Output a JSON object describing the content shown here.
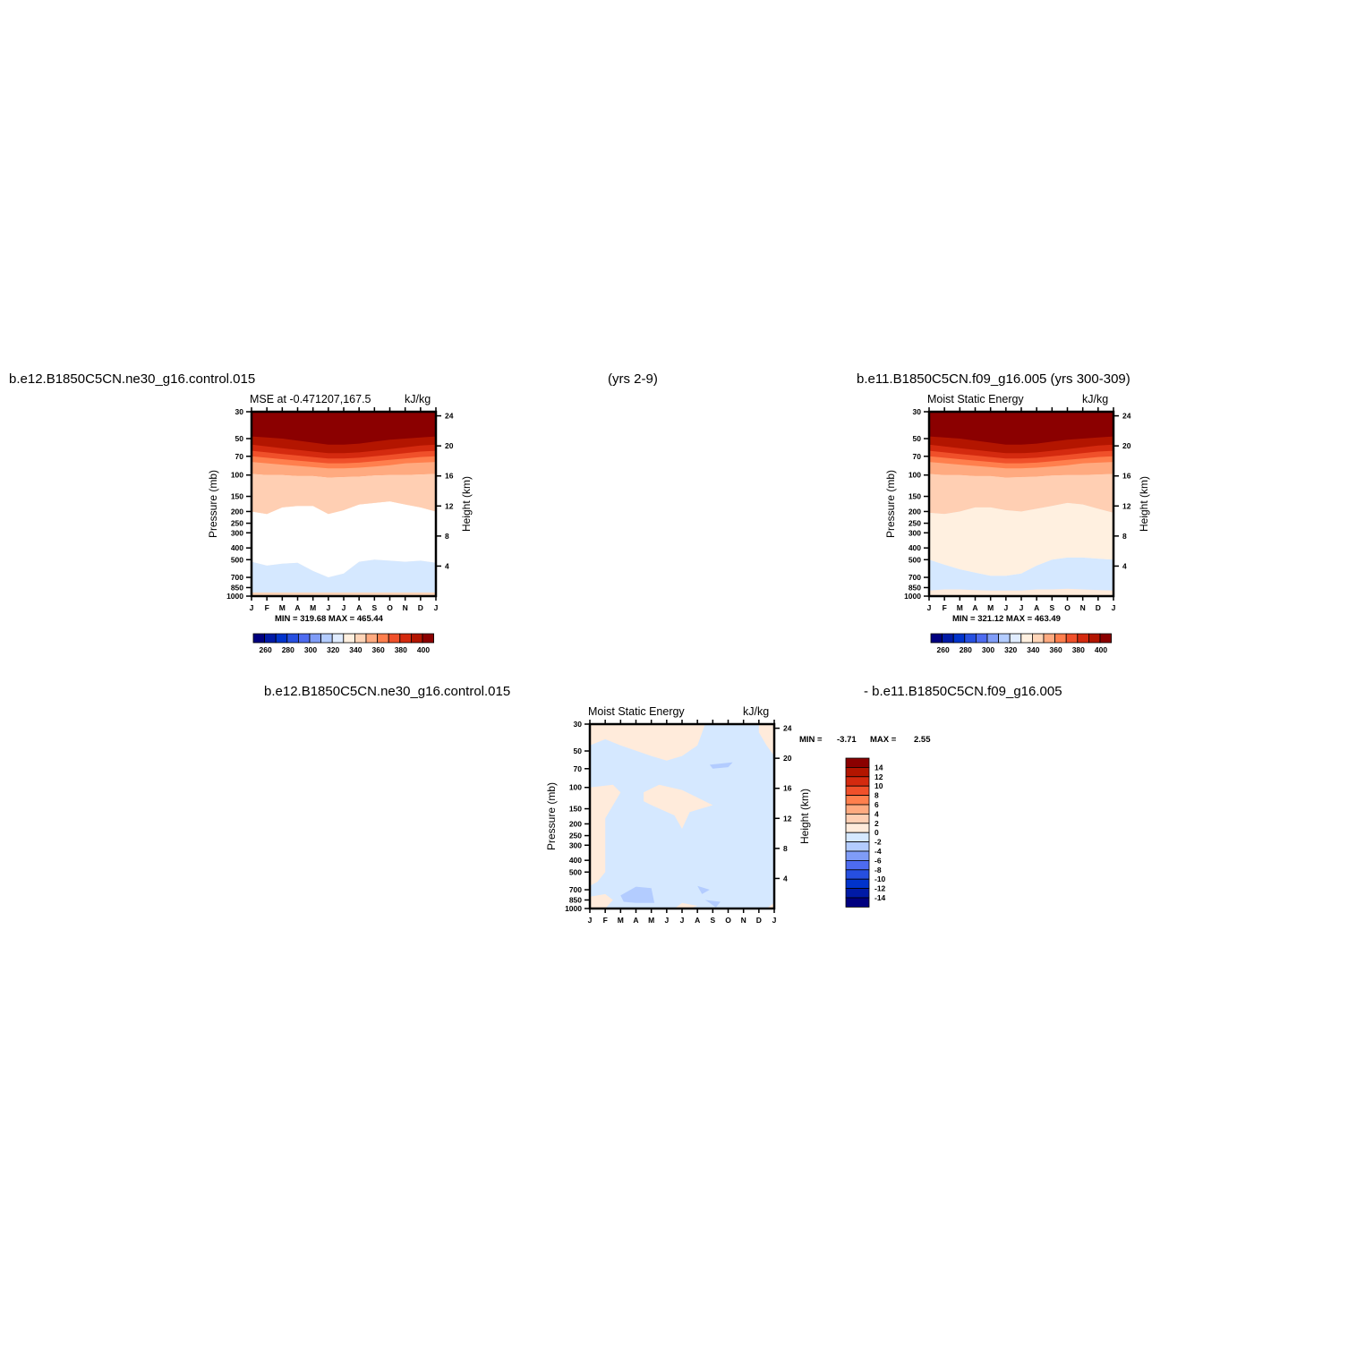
{
  "header": {
    "case_a_title": "b.e12.B1850C5CN.ne30_g16.control.015",
    "case_a_years": "(yrs 2-9)",
    "case_b_title": "b.e11.B1850C5CN.f09_g16.005 (yrs 300-309)",
    "diff_title_left": "b.e12.B1850C5CN.ne30_g16.control.015",
    "diff_title_right": "- b.e11.B1850C5CN.f09_g16.005"
  },
  "colors": {
    "mse_levels": [
      "#00007f",
      "#001aa6",
      "#0033cc",
      "#264fe0",
      "#4d6bf0",
      "#7f9cf7",
      "#b3ccff",
      "#e0ecff",
      "#fff0e0",
      "#ffd5b8",
      "#ffaa80",
      "#ff7f4d",
      "#f0502a",
      "#d42a0f",
      "#b31500",
      "#8b0000"
    ],
    "diff_levels": [
      "#00007f",
      "#001aa6",
      "#0033cc",
      "#264fe0",
      "#4d6bf0",
      "#7f9cf7",
      "#b3ccff",
      "#d5e8ff",
      "#ffebdb",
      "#ffcfb3",
      "#ffaa80",
      "#ff7f4d",
      "#f0502a",
      "#d42a0f",
      "#b31500",
      "#8b0000"
    ]
  },
  "chart_data": [
    {
      "type": "heatmap",
      "title": "MSE at -0.471207,167.5",
      "units": "kJ/kg",
      "ylabel": "Pressure (mb)",
      "ylabel_right": "Height (km)",
      "x_ticks": [
        "J",
        "F",
        "M",
        "A",
        "M",
        "J",
        "J",
        "A",
        "S",
        "O",
        "N",
        "D",
        "J"
      ],
      "y_ticks": [
        "30",
        "50",
        "70",
        "100",
        "150",
        "200",
        "250",
        "300",
        "400",
        "500",
        "700",
        "850",
        "1000"
      ],
      "y_ticks_right": [
        "24",
        "20",
        "16",
        "12",
        "8",
        "4"
      ],
      "stats": "MIN = 319.68   MAX = 465.44",
      "colorbar_labels": [
        "260",
        "280",
        "300",
        "320",
        "340",
        "360",
        "380",
        "400"
      ],
      "bands": [
        {
          "level": 320,
          "top_hpa": [
            520,
            560,
            540,
            530,
            620,
            700,
            650,
            520,
            500,
            510,
            520,
            510,
            530
          ]
        },
        {
          "level": 340,
          "top_hpa": [
            200,
            210,
            185,
            180,
            180,
            210,
            195,
            175,
            170,
            165,
            175,
            185,
            200
          ]
        },
        {
          "level": 350,
          "top_hpa": [
            98,
            100,
            100,
            102,
            102,
            105,
            104,
            103,
            101,
            100,
            100,
            99,
            98
          ]
        },
        {
          "level": 360,
          "top_hpa": [
            78,
            80,
            82,
            84,
            86,
            88,
            88,
            87,
            85,
            83,
            80,
            79,
            78
          ]
        },
        {
          "level": 370,
          "top_hpa": [
            70,
            72,
            74,
            76,
            78,
            80,
            80,
            79,
            77,
            75,
            73,
            71,
            70
          ]
        },
        {
          "level": 380,
          "top_hpa": [
            63,
            65,
            67,
            69,
            71,
            73,
            73,
            72,
            70,
            68,
            66,
            64,
            63
          ]
        },
        {
          "level": 390,
          "top_hpa": [
            56,
            58,
            60,
            62,
            64,
            66,
            66,
            65,
            63,
            61,
            59,
            57,
            56
          ]
        },
        {
          "level": 400,
          "top_hpa": [
            48,
            49,
            50,
            52,
            54,
            56,
            56,
            55,
            53,
            51,
            50,
            49,
            48
          ]
        }
      ]
    },
    {
      "type": "heatmap",
      "title": "Moist Static Energy",
      "units": "kJ/kg",
      "ylabel": "Pressure (mb)",
      "ylabel_right": "Height (km)",
      "x_ticks": [
        "J",
        "F",
        "M",
        "A",
        "M",
        "J",
        "J",
        "A",
        "S",
        "O",
        "N",
        "D",
        "J"
      ],
      "y_ticks": [
        "30",
        "50",
        "70",
        "100",
        "150",
        "200",
        "250",
        "300",
        "400",
        "500",
        "700",
        "850",
        "1000"
      ],
      "y_ticks_right": [
        "24",
        "20",
        "16",
        "12",
        "8",
        "4"
      ],
      "stats": "MIN = 321.12   MAX = 463.49",
      "colorbar_labels": [
        "260",
        "280",
        "300",
        "320",
        "340",
        "360",
        "380",
        "400"
      ],
      "bands": [
        {
          "level": 320,
          "top_hpa": [
            900,
            880,
            880,
            890,
            900,
            900,
            900,
            880,
            880,
            870,
            880,
            890,
            900
          ]
        },
        {
          "level": 330,
          "top_hpa": [
            500,
            550,
            600,
            640,
            680,
            680,
            650,
            560,
            500,
            480,
            480,
            490,
            500
          ]
        },
        {
          "level": 340,
          "top_hpa": [
            205,
            210,
            200,
            185,
            185,
            195,
            200,
            190,
            180,
            170,
            175,
            190,
            205
          ]
        },
        {
          "level": 350,
          "top_hpa": [
            98,
            100,
            100,
            102,
            102,
            105,
            104,
            103,
            101,
            100,
            100,
            99,
            98
          ]
        },
        {
          "level": 360,
          "top_hpa": [
            78,
            80,
            82,
            84,
            86,
            88,
            88,
            87,
            85,
            83,
            80,
            79,
            78
          ]
        },
        {
          "level": 370,
          "top_hpa": [
            70,
            72,
            74,
            76,
            78,
            80,
            80,
            79,
            77,
            75,
            73,
            71,
            70
          ]
        },
        {
          "level": 380,
          "top_hpa": [
            63,
            65,
            67,
            69,
            71,
            73,
            73,
            72,
            70,
            68,
            66,
            64,
            63
          ]
        },
        {
          "level": 390,
          "top_hpa": [
            56,
            58,
            60,
            62,
            64,
            66,
            66,
            65,
            63,
            61,
            59,
            57,
            56
          ]
        },
        {
          "level": 400,
          "top_hpa": [
            48,
            49,
            50,
            52,
            54,
            56,
            56,
            55,
            53,
            51,
            50,
            49,
            48
          ]
        }
      ]
    },
    {
      "type": "heatmap",
      "title": "Moist Static Energy",
      "units": "kJ/kg",
      "ylabel": "Pressure (mb)",
      "ylabel_right": "Height (km)",
      "x_ticks": [
        "J",
        "F",
        "M",
        "A",
        "M",
        "J",
        "J",
        "A",
        "S",
        "O",
        "N",
        "D",
        "J"
      ],
      "y_ticks": [
        "30",
        "50",
        "70",
        "100",
        "150",
        "200",
        "250",
        "300",
        "400",
        "500",
        "700",
        "850",
        "1000"
      ],
      "y_ticks_right": [
        "24",
        "20",
        "16",
        "12",
        "8",
        "4"
      ],
      "stats_min_label": "MIN =",
      "stats_min": "-3.71",
      "stats_max_label": "MAX =",
      "stats_max": "2.55",
      "colorbar_labels": [
        "14",
        "12",
        "10",
        "8",
        "6",
        "4",
        "2",
        "0",
        "-2",
        "-4",
        "-6",
        "-8",
        "-10",
        "-12",
        "-14"
      ],
      "positive_regions": [
        {
          "points": [
            [
              0,
              30
            ],
            [
              2,
              34
            ],
            [
              4,
              32
            ],
            [
              4.6,
              30
            ],
            [
              0,
              30
            ]
          ]
        },
        {
          "points": [
            [
              0,
              30
            ],
            [
              0,
              45
            ],
            [
              1,
              40
            ],
            [
              2,
              45
            ],
            [
              4,
              55
            ],
            [
              5,
              60
            ],
            [
              6,
              55
            ],
            [
              7,
              45
            ],
            [
              7.5,
              30
            ]
          ]
        },
        {
          "points": [
            [
              11,
              30
            ],
            [
              12,
              30
            ],
            [
              12,
              55
            ],
            [
              11.5,
              45
            ],
            [
              11,
              35
            ]
          ]
        },
        {
          "points": [
            [
              0,
              100
            ],
            [
              1.5,
              95
            ],
            [
              2,
              110
            ],
            [
              1,
              180
            ],
            [
              1,
              500
            ],
            [
              0.5,
              600
            ],
            [
              0,
              650
            ]
          ]
        },
        {
          "points": [
            [
              3.5,
              110
            ],
            [
              4.5,
              95
            ],
            [
              6,
              105
            ],
            [
              8,
              140
            ],
            [
              6.5,
              160
            ],
            [
              6,
              220
            ],
            [
              5.5,
              170
            ],
            [
              4,
              140
            ],
            [
              3.5,
              130
            ]
          ]
        },
        {
          "points": [
            [
              0,
              800
            ],
            [
              1,
              760
            ],
            [
              1.5,
              850
            ],
            [
              1,
              1000
            ],
            [
              0,
              1000
            ]
          ]
        },
        {
          "points": [
            [
              5.5,
              1000
            ],
            [
              6,
              900
            ],
            [
              7,
              950
            ],
            [
              6.5,
              1000
            ]
          ]
        },
        {
          "points": [
            [
              11.5,
              1000
            ],
            [
              12,
              900
            ],
            [
              12,
              1000
            ]
          ]
        }
      ],
      "negative_strong_regions": [
        {
          "points": [
            [
              2,
              780
            ],
            [
              3,
              660
            ],
            [
              4,
              680
            ],
            [
              4.2,
              900
            ],
            [
              3,
              900
            ],
            [
              2.2,
              880
            ]
          ]
        },
        {
          "points": [
            [
              7,
              650
            ],
            [
              7.8,
              700
            ],
            [
              7.3,
              760
            ]
          ]
        },
        {
          "points": [
            [
              7.5,
              850
            ],
            [
              8.5,
              880
            ],
            [
              8.2,
              980
            ],
            [
              7.8,
              900
            ]
          ]
        },
        {
          "points": [
            [
              7.8,
              65
            ],
            [
              9.3,
              62
            ],
            [
              9,
              68
            ],
            [
              8,
              70
            ]
          ]
        }
      ]
    }
  ]
}
